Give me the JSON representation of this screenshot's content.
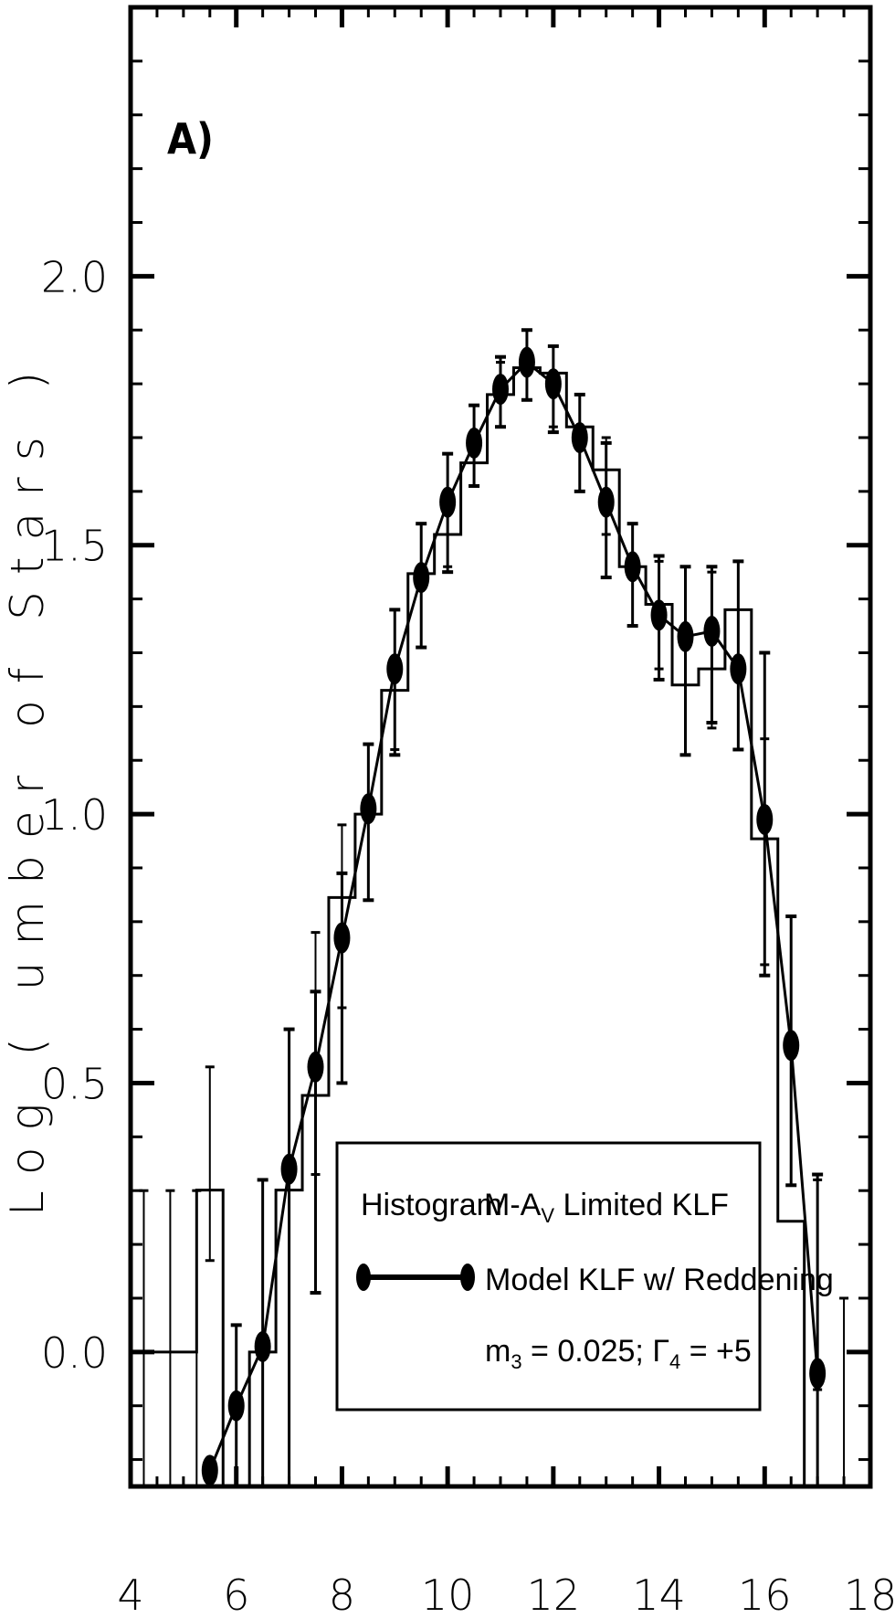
{
  "chart_data": {
    "type": "line",
    "panel_label": "A)",
    "xlabel": "",
    "ylabel": "Log ( umber of Stars )",
    "xlim": [
      4,
      18
    ],
    "ylim": [
      -0.25,
      2.5
    ],
    "x_ticks": [
      "4",
      "6",
      "8",
      "10",
      "12",
      "14",
      "16",
      "18"
    ],
    "y_ticks": [
      "0.0",
      "0.5",
      "1.0",
      "1.5",
      "2.0"
    ],
    "legend": {
      "histogram_label": "Histogram",
      "histogram_desc_prefix": "M-A",
      "histogram_desc_sub": "V",
      "histogram_desc_suffix": " Limited KLF",
      "model_label": "Model KLF w/ Reddening",
      "params_m_base": "m",
      "params_m_sub": "3",
      "params_m_val": " = 0.025; ",
      "params_g_base": "Γ",
      "params_g_sub": "4",
      "params_g_val": " = +5"
    },
    "histogram": {
      "bin_edges": [
        4.0,
        5.25,
        5.75,
        6.25,
        6.75,
        7.25,
        7.75,
        8.25,
        8.75,
        9.25,
        9.75,
        10.25,
        10.75,
        11.25,
        11.75,
        12.25,
        12.75,
        13.25,
        13.75,
        14.25,
        14.75,
        15.25,
        15.75,
        16.25,
        16.75,
        17.25
      ],
      "values": [
        0.0,
        0.301,
        -0.25,
        0.0,
        0.301,
        0.477,
        0.845,
        1.0,
        1.23,
        1.447,
        1.52,
        1.653,
        1.78,
        1.83,
        1.82,
        1.72,
        1.64,
        1.46,
        1.39,
        1.24,
        1.27,
        1.38,
        0.954,
        0.243,
        -0.25
      ]
    },
    "histogram_errors": [
      {
        "x": 4.25,
        "low": -0.25,
        "high": 0.3
      },
      {
        "x": 4.75,
        "low": -0.25,
        "high": 0.3
      },
      {
        "x": 5.25,
        "low": -0.25,
        "high": 0.3
      },
      {
        "x": 5.5,
        "low": 0.17,
        "high": 0.53
      },
      {
        "x": 6.5,
        "low": -0.25,
        "high": 0.32
      },
      {
        "x": 7.5,
        "low": 0.33,
        "high": 0.78
      },
      {
        "x": 8.0,
        "low": 0.64,
        "high": 0.98
      },
      {
        "x": 9.0,
        "low": 1.12,
        "high": 1.38
      },
      {
        "x": 10.0,
        "low": 1.46,
        "high": 1.67
      },
      {
        "x": 11.0,
        "low": 1.72,
        "high": 1.84
      },
      {
        "x": 12.0,
        "low": 1.72,
        "high": 1.87
      },
      {
        "x": 13.0,
        "low": 1.52,
        "high": 1.7
      },
      {
        "x": 14.0,
        "low": 1.27,
        "high": 1.47
      },
      {
        "x": 15.0,
        "low": 1.16,
        "high": 1.45
      },
      {
        "x": 16.0,
        "low": 0.72,
        "high": 1.14
      },
      {
        "x": 17.0,
        "low": -0.07,
        "high": 0.32
      },
      {
        "x": 17.5,
        "low": -0.25,
        "high": 0.1
      }
    ],
    "series": [
      {
        "x": [
          5.5,
          6.0,
          6.5,
          7.0,
          7.5,
          8.0,
          8.5,
          9.0,
          9.5,
          10.0,
          10.5,
          11.0,
          11.5,
          12.0,
          12.5,
          13.0,
          13.5,
          14.0,
          14.5,
          15.0,
          15.5,
          16.0,
          16.5,
          17.0
        ],
        "y": [
          -0.22,
          -0.1,
          0.01,
          0.34,
          0.53,
          0.77,
          1.01,
          1.27,
          1.44,
          1.58,
          1.69,
          1.79,
          1.84,
          1.8,
          1.7,
          1.58,
          1.46,
          1.37,
          1.33,
          1.34,
          1.27,
          0.99,
          0.57,
          -0.04
        ],
        "err_low": [
          -0.25,
          -0.25,
          -0.25,
          -0.25,
          0.11,
          0.5,
          0.84,
          1.11,
          1.31,
          1.45,
          1.61,
          1.72,
          1.77,
          1.71,
          1.6,
          1.44,
          1.35,
          1.25,
          1.11,
          1.17,
          1.12,
          0.7,
          0.31,
          -0.25
        ],
        "err_high": [
          -0.25,
          0.05,
          0.32,
          0.6,
          0.67,
          0.89,
          1.13,
          1.38,
          1.54,
          1.67,
          1.76,
          1.85,
          1.9,
          1.87,
          1.78,
          1.69,
          1.54,
          1.48,
          1.46,
          1.46,
          1.47,
          1.3,
          0.81,
          0.33
        ],
        "color": "#000000"
      }
    ],
    "grid": false,
    "legend_position": "bottom-center"
  }
}
